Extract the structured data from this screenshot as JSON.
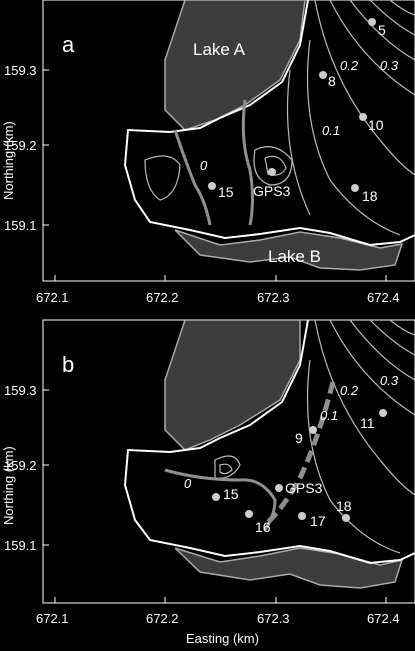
{
  "panels": [
    {
      "letter": "a",
      "lakes": [
        "Lake A",
        "Lake B"
      ],
      "sites": [
        "5",
        "8",
        "10",
        "15",
        "GPS3",
        "18"
      ],
      "contour_labels": [
        "0.3",
        "0.2",
        "0.1",
        "0"
      ],
      "x_ticks": [
        "672.1",
        "672.2",
        "672.3",
        "672.4"
      ],
      "y_ticks": [
        "159.3",
        "159.2",
        "159.1"
      ],
      "ylabel": "Northing (km)"
    },
    {
      "letter": "b",
      "sites": [
        "9",
        "11",
        "15",
        "GPS3",
        "16",
        "17",
        "18"
      ],
      "contour_labels": [
        "0.3",
        "0.2",
        "0.1",
        "0"
      ],
      "x_ticks": [
        "672.1",
        "672.2",
        "672.3",
        "672.4"
      ],
      "y_ticks": [
        "159.3",
        "159.2",
        "159.1"
      ],
      "ylabel": "Northing (km)",
      "xlabel": "Easting (km)"
    }
  ],
  "colors": {
    "background": "#000000",
    "lake_fill": "#3c3c3c",
    "boundary": "#ffffff",
    "contour": "#bbbbbb",
    "site_marker": "#cccccc",
    "profile_line": "#8f8f8f"
  }
}
